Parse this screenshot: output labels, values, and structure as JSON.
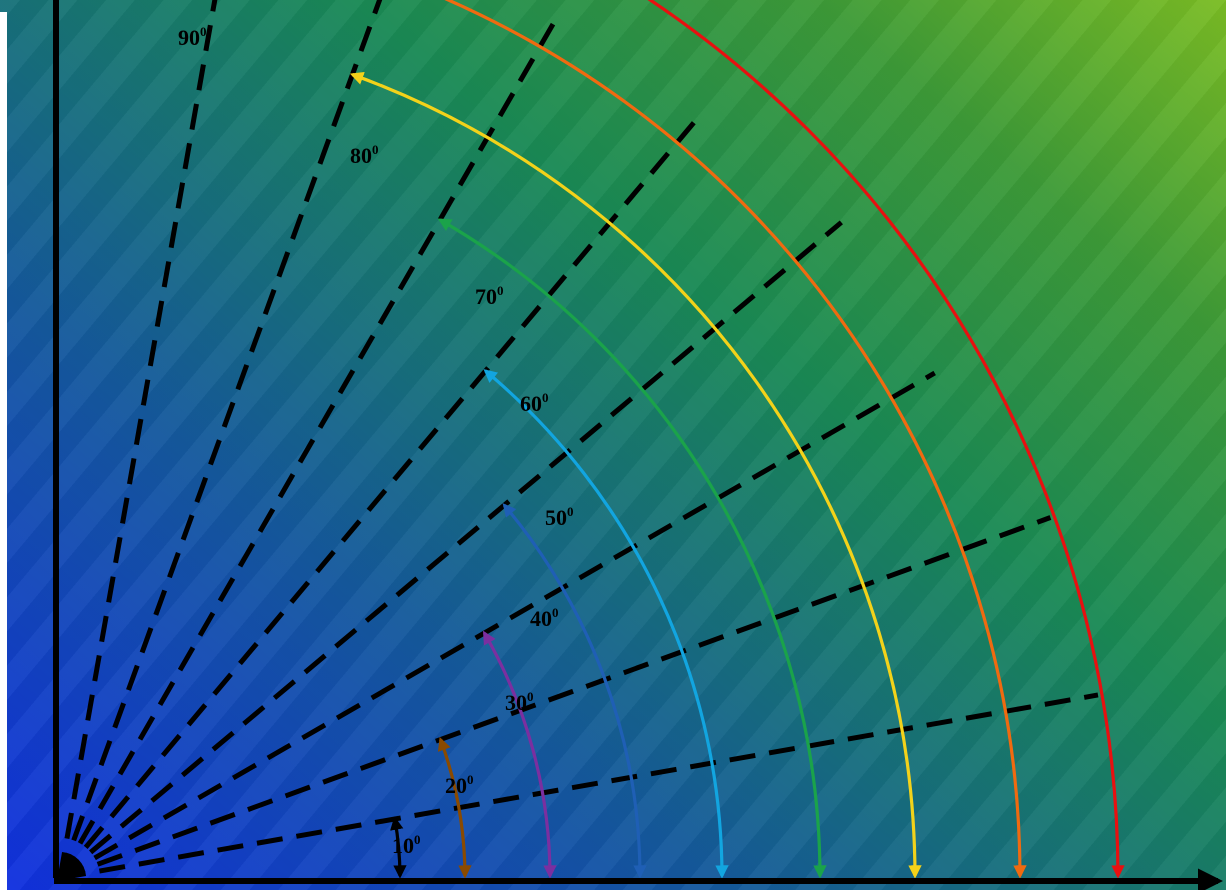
{
  "diagram": {
    "axis_color": "#000000",
    "arcs": [
      {
        "angle": 10,
        "label": "10",
        "degree_mark": "0",
        "color": "#000000"
      },
      {
        "angle": 20,
        "label": "20",
        "degree_mark": "0",
        "color": "#8a4a00"
      },
      {
        "angle": 30,
        "label": "30",
        "degree_mark": "0",
        "color": "#7b2fa0"
      },
      {
        "angle": 40,
        "label": "40",
        "degree_mark": "0",
        "color": "#1f5fb5"
      },
      {
        "angle": 50,
        "label": "50",
        "degree_mark": "0",
        "color": "#12a5e0"
      },
      {
        "angle": 60,
        "label": "60",
        "degree_mark": "0",
        "color": "#1aa34a"
      },
      {
        "angle": 70,
        "label": "70",
        "degree_mark": "0",
        "color": "#f3d21a"
      },
      {
        "angle": 80,
        "label": "80",
        "degree_mark": "0",
        "color": "#f06a10"
      },
      {
        "angle": 90,
        "label": "90",
        "degree_mark": "0",
        "color": "#e81010"
      }
    ]
  }
}
